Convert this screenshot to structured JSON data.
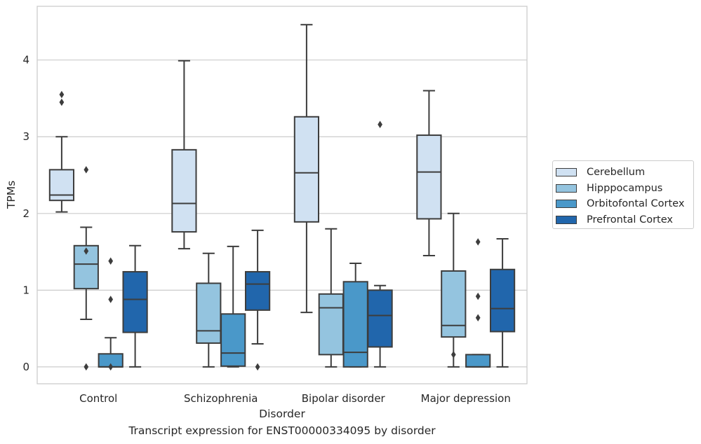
{
  "caption": "Transcript expression for ENST00000334095 by disorder",
  "chart_data": {
    "type": "boxplot",
    "xlabel": "Disorder",
    "ylabel": "TPMs",
    "categories": [
      "Control",
      "Schizophrenia",
      "Bipolar disorder",
      "Major depression"
    ],
    "ylim": [
      -0.22,
      4.7
    ],
    "yticks": [
      0,
      1,
      2,
      3,
      4
    ],
    "grid": "horizontal",
    "legend_position": "right",
    "series": [
      {
        "name": "Cerebellum",
        "color": "#d0e1f2",
        "boxes": [
          {
            "whislo": 2.02,
            "q1": 2.17,
            "med": 2.24,
            "q3": 2.57,
            "whishi": 3.0,
            "fliers": [
              3.45,
              3.55
            ]
          },
          {
            "whislo": 1.54,
            "q1": 1.76,
            "med": 2.13,
            "q3": 2.83,
            "whishi": 3.99,
            "fliers": []
          },
          {
            "whislo": 0.71,
            "q1": 1.89,
            "med": 2.53,
            "q3": 3.26,
            "whishi": 4.46,
            "fliers": []
          },
          {
            "whislo": 1.45,
            "q1": 1.93,
            "med": 2.54,
            "q3": 3.02,
            "whishi": 3.6,
            "fliers": []
          }
        ]
      },
      {
        "name": "Hipppocampus",
        "color": "#94c4df",
        "boxes": [
          {
            "whislo": 0.62,
            "q1": 1.02,
            "med": 1.34,
            "q3": 1.58,
            "whishi": 1.82,
            "fliers": [
              0.0,
              1.51,
              2.57
            ]
          },
          {
            "whislo": 0.0,
            "q1": 0.31,
            "med": 0.47,
            "q3": 1.09,
            "whishi": 1.48,
            "fliers": []
          },
          {
            "whislo": 0.0,
            "q1": 0.16,
            "med": 0.77,
            "q3": 0.95,
            "whishi": 1.8,
            "fliers": []
          },
          {
            "whislo": 0.0,
            "q1": 0.39,
            "med": 0.54,
            "q3": 1.25,
            "whishi": 2.0,
            "fliers": [
              0.16
            ]
          }
        ]
      },
      {
        "name": "Orbitofontal Cortex",
        "color": "#4a98c9",
        "boxes": [
          {
            "whislo": 0.0,
            "q1": 0.0,
            "med": 0.0,
            "q3": 0.17,
            "whishi": 0.38,
            "fliers": [
              0.0,
              0.88,
              1.38
            ]
          },
          {
            "whislo": 0.0,
            "q1": 0.01,
            "med": 0.18,
            "q3": 0.69,
            "whishi": 1.57,
            "fliers": []
          },
          {
            "whislo": 0.0,
            "q1": 0.0,
            "med": 0.19,
            "q3": 1.11,
            "whishi": 1.35,
            "fliers": []
          },
          {
            "whislo": 0.0,
            "q1": 0.0,
            "med": 0.0,
            "q3": 0.16,
            "whishi": 0.16,
            "fliers": [
              0.64,
              0.92,
              1.63
            ]
          }
        ]
      },
      {
        "name": "Prefrontal Cortex",
        "color": "#2166ac",
        "boxes": [
          {
            "whislo": 0.0,
            "q1": 0.45,
            "med": 0.88,
            "q3": 1.24,
            "whishi": 1.58,
            "fliers": []
          },
          {
            "whislo": 0.3,
            "q1": 0.74,
            "med": 1.08,
            "q3": 1.24,
            "whishi": 1.78,
            "fliers": [
              0.0
            ]
          },
          {
            "whislo": 0.0,
            "q1": 0.26,
            "med": 0.67,
            "q3": 1.0,
            "whishi": 1.06,
            "fliers": [
              3.16
            ]
          },
          {
            "whislo": 0.0,
            "q1": 0.46,
            "med": 0.76,
            "q3": 1.27,
            "whishi": 1.67,
            "fliers": []
          }
        ]
      }
    ]
  }
}
